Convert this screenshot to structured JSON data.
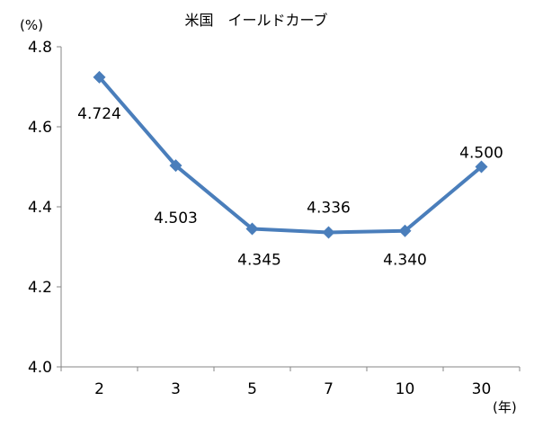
{
  "chart_data": {
    "type": "line",
    "title": "米国　イールドカーブ",
    "y_unit": "(%)",
    "x_unit": "(年)",
    "categories": [
      "2",
      "3",
      "5",
      "7",
      "10",
      "30"
    ],
    "y_ticks": [
      "4.0",
      "4.2",
      "4.4",
      "4.6",
      "4.8"
    ],
    "ylim": [
      4.0,
      4.8
    ],
    "grid": false,
    "legend": "none",
    "series": [
      {
        "values": [
          4.724,
          4.503,
          4.345,
          4.336,
          4.34,
          4.5
        ],
        "labels": [
          "4.724",
          "4.503",
          "4.345",
          "4.336",
          "4.340",
          "4.500"
        ],
        "color": "#4a7ebb"
      }
    ]
  }
}
